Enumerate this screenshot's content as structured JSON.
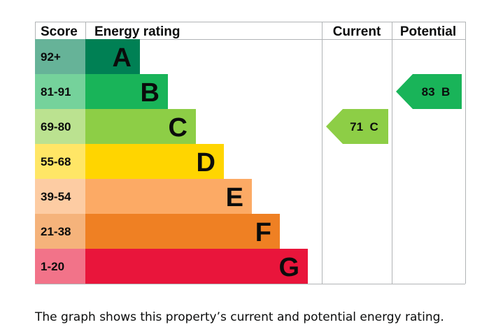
{
  "chart_data": {
    "type": "bar",
    "headers": {
      "score": "Score",
      "energy_rating": "Energy rating",
      "current": "Current",
      "potential": "Potential"
    },
    "bands": [
      {
        "score": "92+",
        "letter": "A",
        "color": "#008054",
        "score_bg": "#66b398"
      },
      {
        "score": "81-91",
        "letter": "B",
        "color": "#19b459",
        "score_bg": "#75d29b"
      },
      {
        "score": "69-80",
        "letter": "C",
        "color": "#8dce46",
        "score_bg": "#bbe290"
      },
      {
        "score": "55-68",
        "letter": "D",
        "color": "#ffd500",
        "score_bg": "#ffe666"
      },
      {
        "score": "39-54",
        "letter": "E",
        "color": "#fcaa65",
        "score_bg": "#fdcca3"
      },
      {
        "score": "21-38",
        "letter": "F",
        "color": "#ef8023",
        "score_bg": "#f5b37b"
      },
      {
        "score": "1-20",
        "letter": "G",
        "color": "#e9153b",
        "score_bg": "#f27389"
      }
    ],
    "current": {
      "value": 71,
      "letter": "C",
      "label": "71  C",
      "color": "#8dce46"
    },
    "potential": {
      "value": 83,
      "letter": "B",
      "label": "83  B",
      "color": "#19b459"
    }
  },
  "caption": "The graph shows this property’s current and potential energy rating."
}
